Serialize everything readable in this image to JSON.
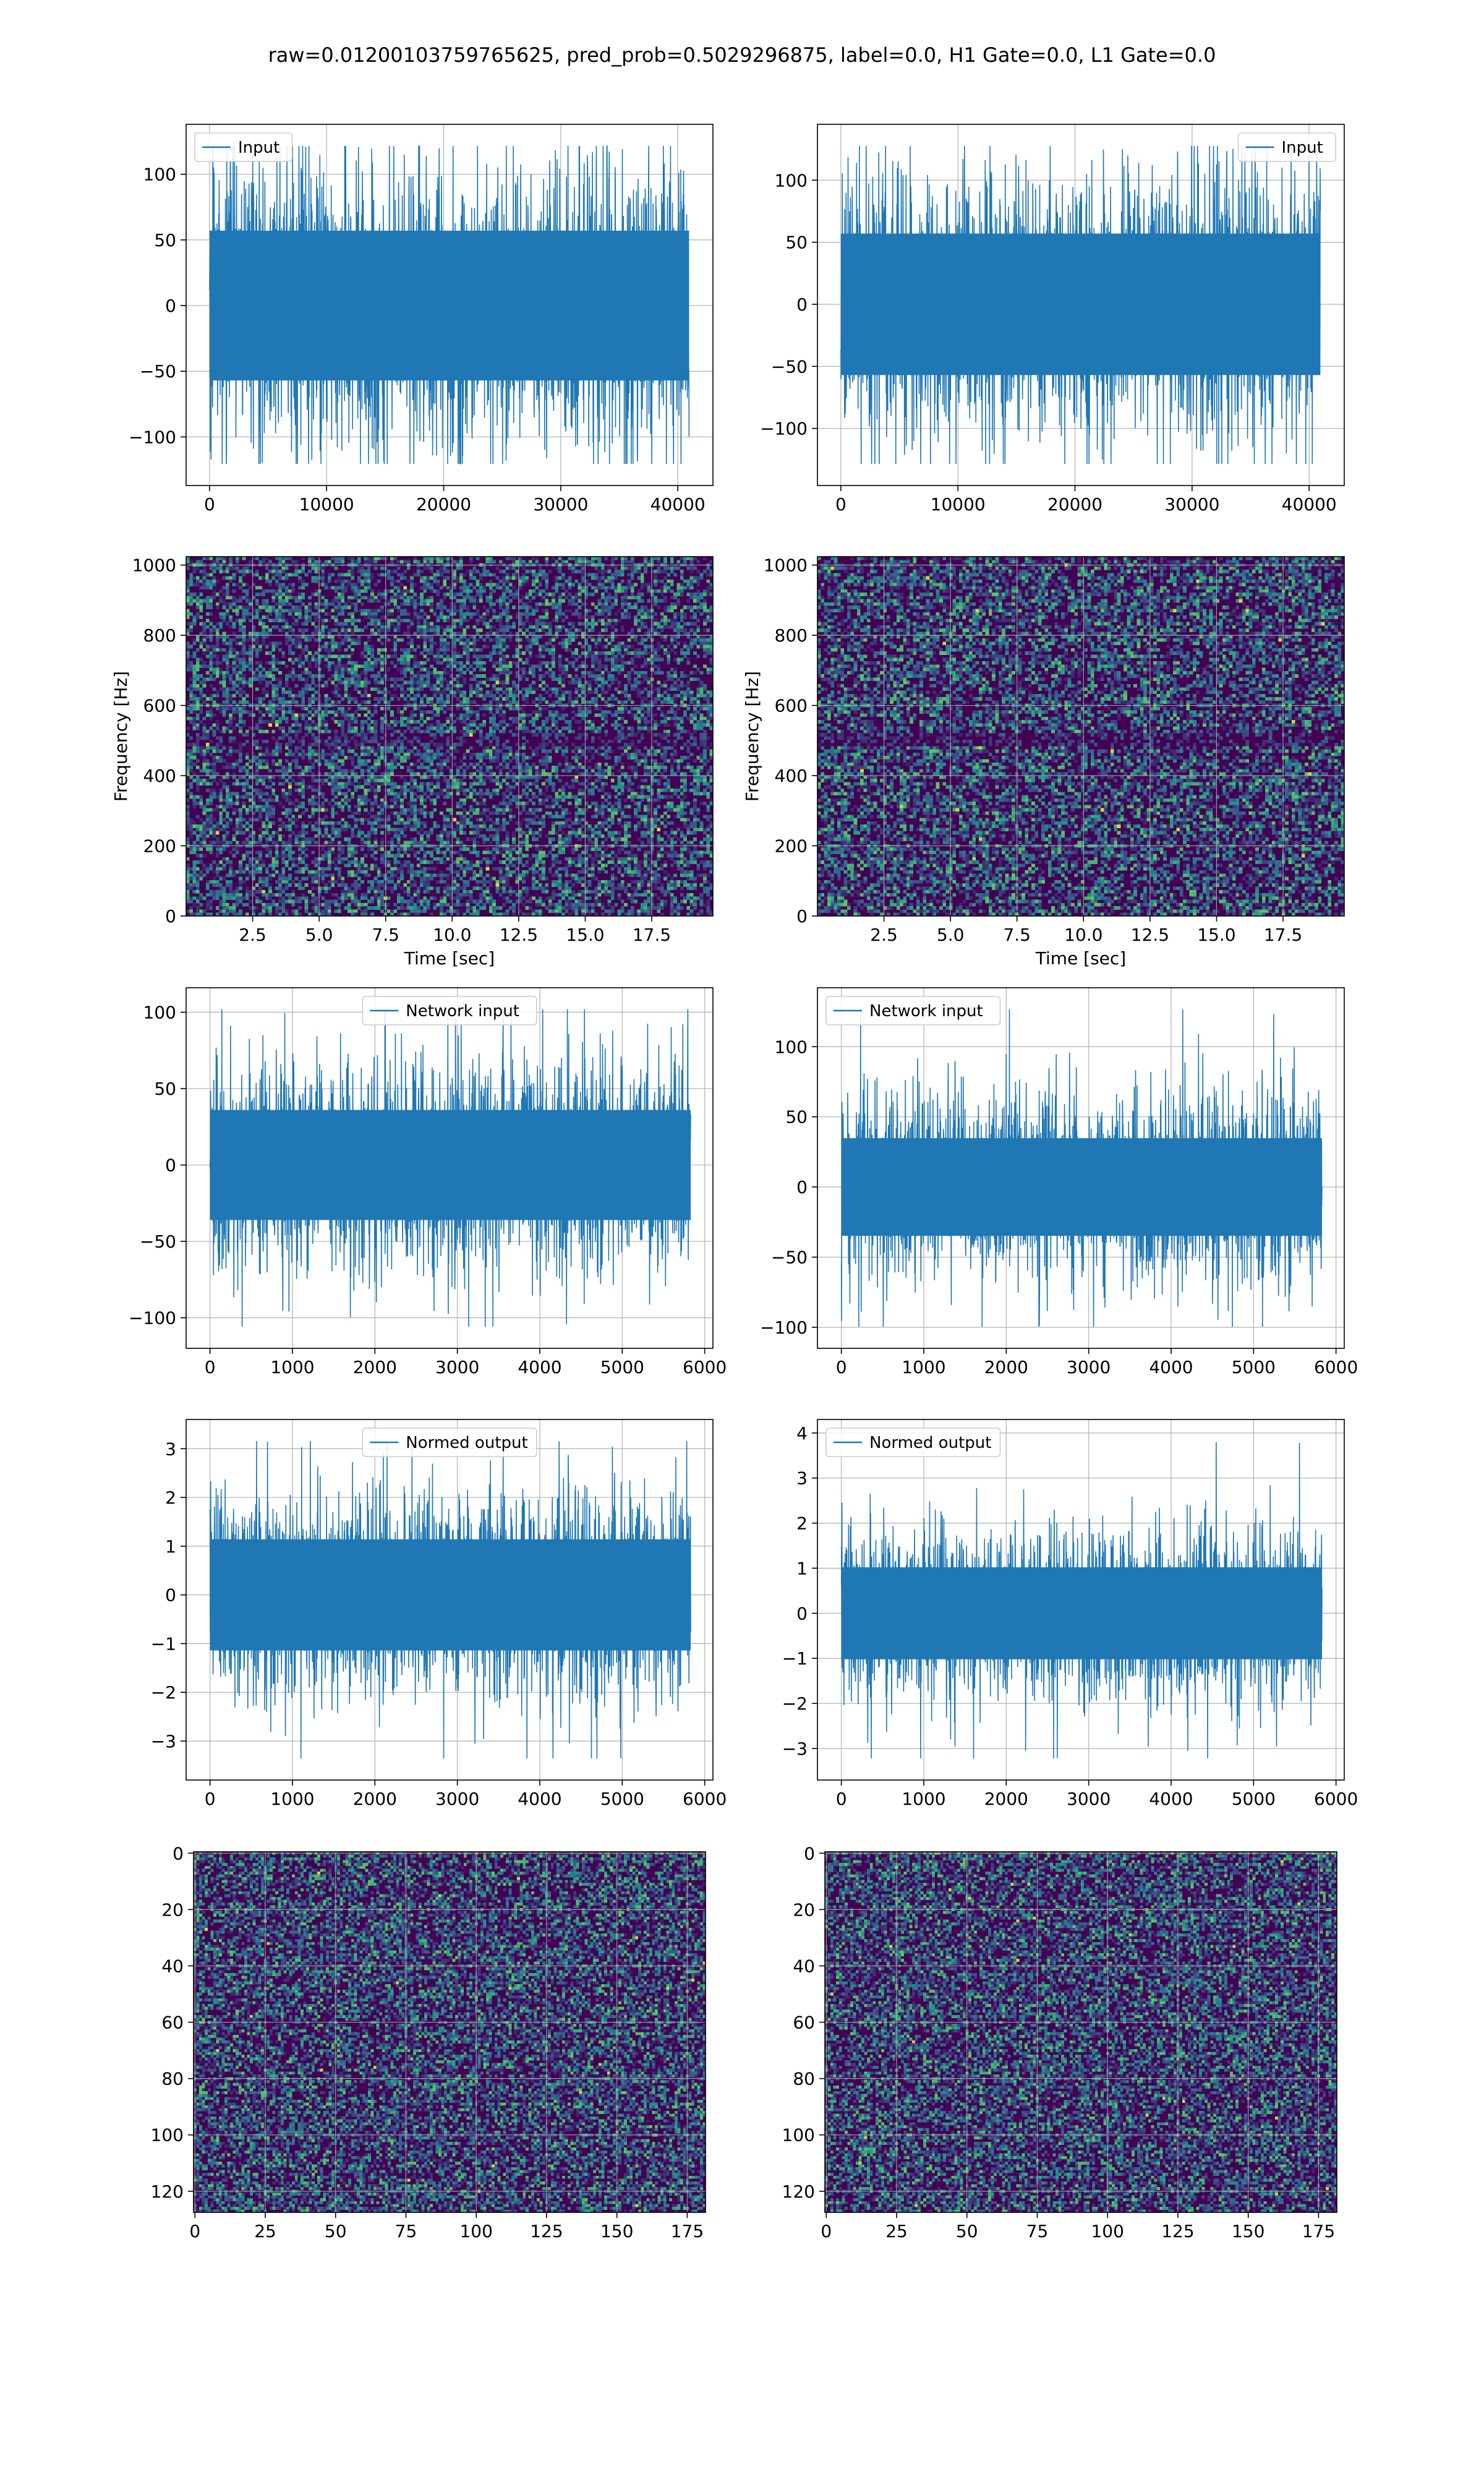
{
  "figure": {
    "suptitle": "raw=0.01200103759765625, pred_prob=0.5029296875, label=0.0, H1 Gate=0.0, L1 Gate=0.0"
  },
  "colors": {
    "line": "#1f77b4",
    "grid": "#b0b0b0",
    "viridis_dark": "#440154",
    "viridis_blue": "#3b528b",
    "viridis_teal": "#21918c",
    "viridis_green": "#5ec962",
    "viridis_yellow": "#fde725"
  },
  "chart_data": [
    {
      "id": "r1c1",
      "type": "line",
      "legend": [
        "Input"
      ],
      "legend_loc": "upper left",
      "xlim": [
        -2000,
        43000
      ],
      "ylim": [
        -137,
        138
      ],
      "xticks": [
        0,
        10000,
        20000,
        30000,
        40000
      ],
      "yticks": [
        -100,
        -50,
        0,
        50,
        100
      ],
      "x_range": [
        0,
        40960
      ],
      "envelope": 95,
      "grid": true
    },
    {
      "id": "r1c2",
      "type": "line",
      "legend": [
        "Input"
      ],
      "legend_loc": "upper right",
      "xlim": [
        -2000,
        43000
      ],
      "ylim": [
        -146,
        145
      ],
      "xticks": [
        0,
        10000,
        20000,
        30000,
        40000
      ],
      "yticks": [
        -100,
        -50,
        0,
        50,
        100
      ],
      "x_range": [
        0,
        40960
      ],
      "envelope": 95,
      "grid": true
    },
    {
      "id": "r2c1",
      "type": "heatmap",
      "origin": "lower",
      "xlim": [
        0,
        19.8
      ],
      "ylim": [
        0,
        1024
      ],
      "xticks": [
        2.5,
        5.0,
        7.5,
        10.0,
        12.5,
        15.0,
        17.5
      ],
      "yticks": [
        0,
        200,
        400,
        600,
        800,
        1000
      ],
      "xlabel": "Time [sec]",
      "ylabel": "Frequency [Hz]",
      "cols": 160,
      "rows": 110,
      "dark_band": [
        480,
        520
      ],
      "grid": true
    },
    {
      "id": "r2c2",
      "type": "heatmap",
      "origin": "lower",
      "xlim": [
        0,
        19.8
      ],
      "ylim": [
        0,
        1024
      ],
      "xticks": [
        2.5,
        5.0,
        7.5,
        10.0,
        12.5,
        15.0,
        17.5
      ],
      "yticks": [
        0,
        200,
        400,
        600,
        800,
        1000
      ],
      "xlabel": "Time [sec]",
      "ylabel": "Frequency [Hz]",
      "cols": 160,
      "rows": 110,
      "dark_band": [
        480,
        520
      ],
      "grid": true
    },
    {
      "id": "r3c1",
      "type": "line",
      "legend": [
        "Network input"
      ],
      "legend_loc": "upper center",
      "xlim": [
        -290,
        6100
      ],
      "ylim": [
        -120,
        116
      ],
      "xticks": [
        0,
        1000,
        2000,
        3000,
        4000,
        5000,
        6000
      ],
      "yticks": [
        -100,
        -50,
        0,
        50,
        100
      ],
      "x_range": [
        0,
        5830
      ],
      "envelope": 60,
      "grid": true
    },
    {
      "id": "r3c2",
      "type": "line",
      "legend": [
        "Network input"
      ],
      "legend_loc": "upper left",
      "xlim": [
        -290,
        6100
      ],
      "ylim": [
        -115,
        142
      ],
      "xticks": [
        0,
        1000,
        2000,
        3000,
        4000,
        5000,
        6000
      ],
      "yticks": [
        -100,
        -50,
        0,
        50,
        100
      ],
      "x_range": [
        0,
        5830
      ],
      "envelope": 58,
      "grid": true
    },
    {
      "id": "r4c1",
      "type": "line",
      "legend": [
        "Normed output"
      ],
      "legend_loc": "upper center",
      "xlim": [
        -290,
        6100
      ],
      "ylim": [
        -3.8,
        3.6
      ],
      "xticks": [
        0,
        1000,
        2000,
        3000,
        4000,
        5000,
        6000
      ],
      "yticks": [
        -3,
        -2,
        -1,
        0,
        1,
        2,
        3
      ],
      "x_range": [
        0,
        5830
      ],
      "envelope": 1.9,
      "grid": true
    },
    {
      "id": "r4c2",
      "type": "line",
      "legend": [
        "Normed output"
      ],
      "legend_loc": "upper left",
      "xlim": [
        -290,
        6100
      ],
      "ylim": [
        -3.7,
        4.3
      ],
      "xticks": [
        0,
        1000,
        2000,
        3000,
        4000,
        5000,
        6000
      ],
      "yticks": [
        -3,
        -2,
        -1,
        0,
        1,
        2,
        3,
        4
      ],
      "x_range": [
        0,
        5830
      ],
      "envelope": 1.7,
      "grid": true
    },
    {
      "id": "r5c1",
      "type": "heatmap",
      "origin": "upper",
      "xlim": [
        -0.5,
        181.5
      ],
      "ylim": [
        127.5,
        -0.5
      ],
      "xticks": [
        0,
        25,
        50,
        75,
        100,
        125,
        150,
        175
      ],
      "yticks": [
        0,
        20,
        40,
        60,
        80,
        100,
        120
      ],
      "cols": 182,
      "rows": 128,
      "grid": true
    },
    {
      "id": "r5c2",
      "type": "heatmap",
      "origin": "upper",
      "xlim": [
        -0.5,
        181.5
      ],
      "ylim": [
        127.5,
        -0.5
      ],
      "xticks": [
        0,
        25,
        50,
        75,
        100,
        125,
        150,
        175
      ],
      "yticks": [
        0,
        20,
        40,
        60,
        80,
        100,
        120
      ],
      "cols": 182,
      "rows": 128,
      "grid": true
    }
  ]
}
